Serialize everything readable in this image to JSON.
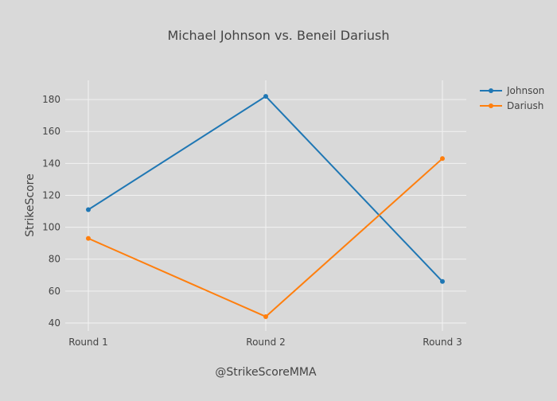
{
  "chart_data": {
    "type": "line",
    "title": "Michael Johnson vs. Beneil Dariush",
    "xlabel": "@StrikeScoreMMA",
    "ylabel": "StrikeScore",
    "categories": [
      "Round 1",
      "Round 2",
      "Round 3"
    ],
    "ylim": [
      35,
      192
    ],
    "yticks": [
      40,
      60,
      80,
      100,
      120,
      140,
      160,
      180
    ],
    "grid": true,
    "legend_position": "top-right",
    "series": [
      {
        "name": "Johnson",
        "color": "#1f77b4",
        "values": [
          111,
          182,
          66
        ]
      },
      {
        "name": "Dariush",
        "color": "#ff7f0e",
        "values": [
          93,
          44,
          143
        ]
      }
    ]
  }
}
